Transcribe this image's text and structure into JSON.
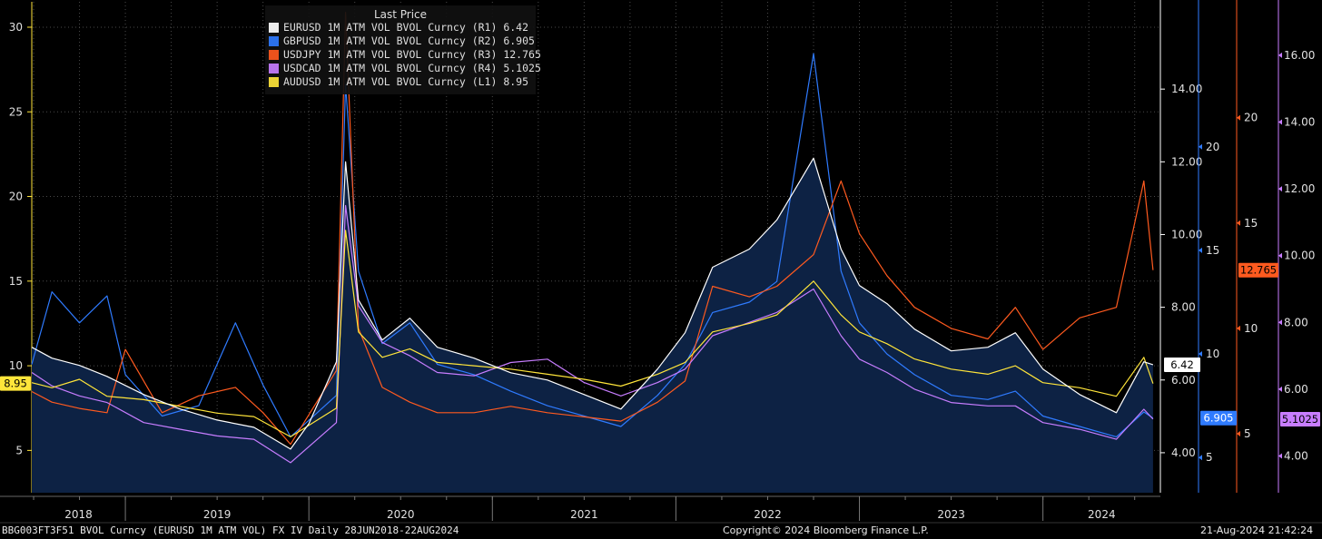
{
  "legend": {
    "title": "Last Price",
    "items": [
      {
        "label": "EURUSD 1M ATM VOL BVOL Curncy  (R1) 6.42",
        "color": "#ffffff"
      },
      {
        "label": "GBPUSD 1M ATM VOL BVOL Curncy  (R2) 6.905",
        "color": "#2f7bff"
      },
      {
        "label": "USDJPY 1M ATM VOL BVOL Curncy  (R3) 12.765",
        "color": "#ff5a1f"
      },
      {
        "label": "USDCAD 1M ATM VOL BVOL Curncy  (R4) 5.1025",
        "color": "#c77dff"
      },
      {
        "label": "AUDUSD 1M ATM VOL BVOL Curncy  (L1) 8.95",
        "color": "#ffe53a"
      }
    ]
  },
  "footer": {
    "left": "BBG003FT3F51 BVOL Curncy (EURUSD 1M ATM VOL) FX IV  Daily 28JUN2018-22AUG2024",
    "center": "Copyright© 2024 Bloomberg Finance L.P.",
    "right": "21-Aug-2024 21:42:24"
  },
  "chart_data": {
    "type": "line",
    "x_labels": [
      "2018",
      "2019",
      "2020",
      "2021",
      "2022",
      "2023",
      "2024"
    ],
    "axes": {
      "L1": {
        "ticks": [
          "5",
          "10",
          "15",
          "20",
          "25",
          "30"
        ],
        "range": [
          2.5,
          31.5
        ],
        "color": "#ffe53a"
      },
      "R1": {
        "ticks": [
          "4.00",
          "6.00",
          "8.00",
          "10.00",
          "12.00",
          "14.00"
        ],
        "range": [
          2.9,
          16.4
        ],
        "color": "#ffffff"
      },
      "R2": {
        "ticks": [
          "5",
          "10",
          "15",
          "20"
        ],
        "range": [
          3.3,
          27.0
        ],
        "color": "#2f7bff"
      },
      "R3": {
        "ticks": [
          "5",
          "10",
          "15",
          "20"
        ],
        "range": [
          2.2,
          25.5
        ],
        "color": "#ff5a1f"
      },
      "R4": {
        "ticks": [
          "4.00",
          "6.00",
          "8.00",
          "10.00",
          "12.00",
          "14.00",
          "16.00"
        ],
        "range": [
          2.9,
          17.6
        ],
        "color": "#c77dff"
      }
    },
    "last_values": {
      "L1": "8.95",
      "R1": "6.42",
      "R2": "6.905",
      "R3": "12.765",
      "R4": "5.1025"
    },
    "series": [
      {
        "name": "EURUSD 1M ATM VOL BVOL Curncy",
        "axis": "R1",
        "color": "#ffffff",
        "points": [
          [
            2018.49,
            6.9
          ],
          [
            2018.6,
            6.6
          ],
          [
            2018.75,
            6.4
          ],
          [
            2018.9,
            6.1
          ],
          [
            2019.1,
            5.6
          ],
          [
            2019.3,
            5.2
          ],
          [
            2019.5,
            4.9
          ],
          [
            2019.7,
            4.7
          ],
          [
            2019.9,
            4.1
          ],
          [
            2020.0,
            4.8
          ],
          [
            2020.15,
            6.5
          ],
          [
            2020.2,
            12.0
          ],
          [
            2020.27,
            8.2
          ],
          [
            2020.4,
            7.1
          ],
          [
            2020.55,
            7.7
          ],
          [
            2020.7,
            6.9
          ],
          [
            2020.9,
            6.6
          ],
          [
            2021.1,
            6.2
          ],
          [
            2021.3,
            6.0
          ],
          [
            2021.5,
            5.6
          ],
          [
            2021.7,
            5.2
          ],
          [
            2021.9,
            6.3
          ],
          [
            2022.05,
            7.3
          ],
          [
            2022.2,
            9.1
          ],
          [
            2022.4,
            9.6
          ],
          [
            2022.55,
            10.4
          ],
          [
            2022.75,
            12.1
          ],
          [
            2022.9,
            9.6
          ],
          [
            2023.0,
            8.6
          ],
          [
            2023.15,
            8.1
          ],
          [
            2023.3,
            7.4
          ],
          [
            2023.5,
            6.8
          ],
          [
            2023.7,
            6.9
          ],
          [
            2023.85,
            7.3
          ],
          [
            2024.0,
            6.3
          ],
          [
            2024.2,
            5.6
          ],
          [
            2024.4,
            5.1
          ],
          [
            2024.55,
            6.5
          ],
          [
            2024.6,
            6.42
          ]
        ]
      },
      {
        "name": "GBPUSD 1M ATM VOL BVOL Curncy",
        "axis": "R2",
        "color": "#2f7bff",
        "points": [
          [
            2018.49,
            9.5
          ],
          [
            2018.6,
            13.0
          ],
          [
            2018.75,
            11.5
          ],
          [
            2018.9,
            12.8
          ],
          [
            2019.0,
            9.0
          ],
          [
            2019.2,
            7.0
          ],
          [
            2019.4,
            7.5
          ],
          [
            2019.6,
            11.5
          ],
          [
            2019.75,
            8.5
          ],
          [
            2019.9,
            6.0
          ],
          [
            2020.15,
            8.0
          ],
          [
            2020.2,
            23.0
          ],
          [
            2020.27,
            14.0
          ],
          [
            2020.4,
            10.5
          ],
          [
            2020.55,
            11.5
          ],
          [
            2020.7,
            9.5
          ],
          [
            2020.9,
            9.0
          ],
          [
            2021.1,
            8.2
          ],
          [
            2021.3,
            7.5
          ],
          [
            2021.5,
            7.0
          ],
          [
            2021.7,
            6.5
          ],
          [
            2021.9,
            8.0
          ],
          [
            2022.05,
            9.5
          ],
          [
            2022.2,
            12.0
          ],
          [
            2022.4,
            12.5
          ],
          [
            2022.55,
            13.5
          ],
          [
            2022.75,
            24.5
          ],
          [
            2022.9,
            14.0
          ],
          [
            2023.0,
            11.5
          ],
          [
            2023.15,
            10.0
          ],
          [
            2023.3,
            9.0
          ],
          [
            2023.5,
            8.0
          ],
          [
            2023.7,
            7.8
          ],
          [
            2023.85,
            8.2
          ],
          [
            2024.0,
            7.0
          ],
          [
            2024.2,
            6.5
          ],
          [
            2024.4,
            6.0
          ],
          [
            2024.55,
            7.2
          ],
          [
            2024.6,
            6.905
          ]
        ]
      },
      {
        "name": "USDJPY 1M ATM VOL BVOL Curncy",
        "axis": "R3",
        "color": "#ff5a1f",
        "points": [
          [
            2018.49,
            7.0
          ],
          [
            2018.6,
            6.5
          ],
          [
            2018.75,
            6.2
          ],
          [
            2018.9,
            6.0
          ],
          [
            2019.0,
            9.0
          ],
          [
            2019.2,
            6.0
          ],
          [
            2019.4,
            6.8
          ],
          [
            2019.6,
            7.2
          ],
          [
            2019.75,
            6.0
          ],
          [
            2019.9,
            4.5
          ],
          [
            2020.15,
            8.0
          ],
          [
            2020.2,
            25.0
          ],
          [
            2020.27,
            10.0
          ],
          [
            2020.4,
            7.2
          ],
          [
            2020.55,
            6.5
          ],
          [
            2020.7,
            6.0
          ],
          [
            2020.9,
            6.0
          ],
          [
            2021.1,
            6.3
          ],
          [
            2021.3,
            6.0
          ],
          [
            2021.5,
            5.8
          ],
          [
            2021.7,
            5.6
          ],
          [
            2021.9,
            6.5
          ],
          [
            2022.05,
            7.5
          ],
          [
            2022.2,
            12.0
          ],
          [
            2022.4,
            11.5
          ],
          [
            2022.55,
            12.0
          ],
          [
            2022.75,
            13.5
          ],
          [
            2022.9,
            17.0
          ],
          [
            2023.0,
            14.5
          ],
          [
            2023.15,
            12.5
          ],
          [
            2023.3,
            11.0
          ],
          [
            2023.5,
            10.0
          ],
          [
            2023.7,
            9.5
          ],
          [
            2023.85,
            11.0
          ],
          [
            2024.0,
            9.0
          ],
          [
            2024.2,
            10.5
          ],
          [
            2024.4,
            11.0
          ],
          [
            2024.55,
            17.0
          ],
          [
            2024.6,
            12.765
          ]
        ]
      },
      {
        "name": "USDCAD 1M ATM VOL BVOL Curncy",
        "axis": "R4",
        "color": "#c77dff",
        "points": [
          [
            2018.49,
            6.5
          ],
          [
            2018.6,
            6.1
          ],
          [
            2018.75,
            5.8
          ],
          [
            2018.9,
            5.6
          ],
          [
            2019.1,
            5.0
          ],
          [
            2019.3,
            4.8
          ],
          [
            2019.5,
            4.6
          ],
          [
            2019.7,
            4.5
          ],
          [
            2019.9,
            3.8
          ],
          [
            2020.15,
            5.0
          ],
          [
            2020.2,
            11.5
          ],
          [
            2020.27,
            8.5
          ],
          [
            2020.4,
            7.4
          ],
          [
            2020.55,
            7.0
          ],
          [
            2020.7,
            6.5
          ],
          [
            2020.9,
            6.4
          ],
          [
            2021.1,
            6.8
          ],
          [
            2021.3,
            6.9
          ],
          [
            2021.5,
            6.2
          ],
          [
            2021.7,
            5.8
          ],
          [
            2021.9,
            6.2
          ],
          [
            2022.05,
            6.6
          ],
          [
            2022.2,
            7.6
          ],
          [
            2022.4,
            8.0
          ],
          [
            2022.55,
            8.3
          ],
          [
            2022.75,
            9.0
          ],
          [
            2022.9,
            7.6
          ],
          [
            2023.0,
            6.9
          ],
          [
            2023.15,
            6.5
          ],
          [
            2023.3,
            6.0
          ],
          [
            2023.5,
            5.6
          ],
          [
            2023.7,
            5.5
          ],
          [
            2023.85,
            5.5
          ],
          [
            2024.0,
            5.0
          ],
          [
            2024.2,
            4.8
          ],
          [
            2024.4,
            4.5
          ],
          [
            2024.55,
            5.4
          ],
          [
            2024.6,
            5.1025
          ]
        ]
      },
      {
        "name": "AUDUSD 1M ATM VOL BVOL Curncy",
        "axis": "L1",
        "color": "#ffe53a",
        "points": [
          [
            2018.49,
            9.0
          ],
          [
            2018.6,
            8.7
          ],
          [
            2018.75,
            9.2
          ],
          [
            2018.9,
            8.2
          ],
          [
            2019.1,
            8.0
          ],
          [
            2019.3,
            7.6
          ],
          [
            2019.5,
            7.2
          ],
          [
            2019.7,
            7.0
          ],
          [
            2019.9,
            5.8
          ],
          [
            2020.15,
            7.5
          ],
          [
            2020.2,
            18.0
          ],
          [
            2020.27,
            12.0
          ],
          [
            2020.4,
            10.5
          ],
          [
            2020.55,
            11.0
          ],
          [
            2020.7,
            10.2
          ],
          [
            2020.9,
            10.0
          ],
          [
            2021.1,
            9.8
          ],
          [
            2021.3,
            9.5
          ],
          [
            2021.5,
            9.2
          ],
          [
            2021.7,
            8.8
          ],
          [
            2021.9,
            9.5
          ],
          [
            2022.05,
            10.2
          ],
          [
            2022.2,
            12.0
          ],
          [
            2022.4,
            12.5
          ],
          [
            2022.55,
            13.0
          ],
          [
            2022.75,
            15.0
          ],
          [
            2022.9,
            13.0
          ],
          [
            2023.0,
            12.0
          ],
          [
            2023.15,
            11.3
          ],
          [
            2023.3,
            10.4
          ],
          [
            2023.5,
            9.8
          ],
          [
            2023.7,
            9.5
          ],
          [
            2023.85,
            10.0
          ],
          [
            2024.0,
            9.0
          ],
          [
            2024.2,
            8.7
          ],
          [
            2024.4,
            8.2
          ],
          [
            2024.55,
            10.5
          ],
          [
            2024.6,
            8.95
          ]
        ]
      }
    ]
  }
}
